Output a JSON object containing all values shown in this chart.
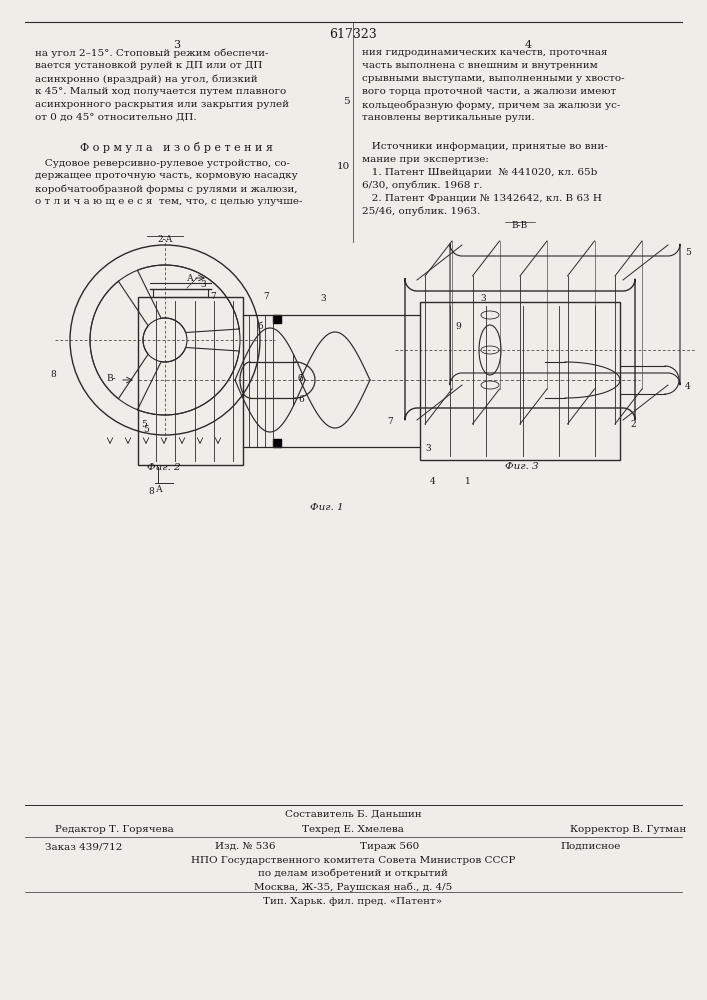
{
  "patent_number": "617323",
  "bg_color": "#f0ede8",
  "text_color": "#1a1a1a",
  "line_color": "#2a2a2a",
  "col1_text": [
    "на угол 2–15°. Стоповый режим обеспечи-",
    "вается установкой рулей к ДП или от ДП",
    "асинхронно (враздрай) на угол, близкий",
    "к 45°. Малый ход получается путем плавного",
    "асинхронного раскрытия или закрытия рулей",
    "от 0 до 45° относительно ДП."
  ],
  "col1_formula_title": "Ф о р м у л а   и з о б р е т е н и я",
  "col1_formula_text": [
    "   Судовое реверсивно-рулевое устройство, со-",
    "держащее проточную часть, кормовую насадку",
    "коробчатообразной формы с рулями и жалюзи,",
    "о т л и ч а ю щ е е с я  тем, что, с целью улучше-"
  ],
  "col2_text": [
    "ния гидродинамических качеств, проточная",
    "часть выполнена с внешним и внутренним",
    "срывными выступами, выполненными у хвосто-",
    "вого торца проточной части, а жалюзи имеют",
    "кольцеобразную форму, причем за жалюзи ус-",
    "тановлены вертикальные рули."
  ],
  "col2_sources_title": "   Источники информации, принятые во вни-",
  "col2_sources_text": [
    "мание при экспертизе:",
    "   1. Патент Швейцарии  № 441020, кл. 65b",
    "6/30, опублик. 1968 г.",
    "   2. Патент Франции № 1342642, кл. В 63 Н",
    "25/46, опублик. 1963."
  ],
  "fig1_caption": "Фиг. 1",
  "fig2_caption": "Фиг. 2",
  "fig3_caption": "Фиг. 3",
  "footer_compiler": "Составитель Б. Даньшин",
  "footer_editor": "Редактор Т. Горячева",
  "footer_techred": "Техред Е. Хмелева",
  "footer_corrector": "Корректор В. Гутман",
  "footer_order": "Заказ 439/712",
  "footer_pub": "Изд. № 536",
  "footer_circ": "Тираж 560",
  "footer_type": "Подписное",
  "footer_npo": "НПО Государственного комитета Совета Министров СССР",
  "footer_npo2": "по делам изобретений и открытий",
  "footer_npo3": "Москва, Ж-35, Раушская наб., д. 4/5",
  "footer_tip": "Тип. Харьк. фил. пред. «Патент»"
}
